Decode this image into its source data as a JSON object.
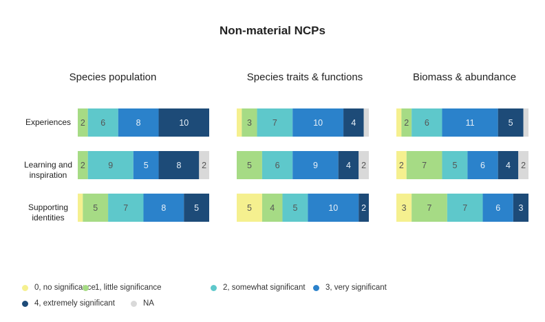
{
  "chart_data": {
    "type": "bar",
    "title": "Non-material NCPs",
    "rows": [
      "Experiences",
      "Learning and inspiration",
      "Supporting identities"
    ],
    "levels": [
      {
        "name": "0, no significance",
        "color": "#f5f08f",
        "text_color": "#555555"
      },
      {
        "name": "1, little significance",
        "color": "#a6db85",
        "text_color": "#555555"
      },
      {
        "name": "2, somewhat significant",
        "color": "#5ec8cb",
        "text_color": "#555555"
      },
      {
        "name": "3, very significant",
        "color": "#2b82cb",
        "text_color": "#e8f0f8"
      },
      {
        "name": "4, extremely significant",
        "color": "#1d4b78",
        "text_color": "#e8f0f8"
      },
      {
        "name": "NA",
        "color": "#d9d9d9",
        "text_color": "#555555"
      }
    ],
    "panels": [
      {
        "title": "Species population",
        "rows": [
          {
            "row": "Experiences",
            "values": [
              0,
              2,
              6,
              8,
              10,
              0
            ]
          },
          {
            "row": "Learning and inspiration",
            "values": [
              0,
              2,
              9,
              5,
              8,
              2
            ]
          },
          {
            "row": "Supporting identities",
            "values": [
              1,
              5,
              7,
              8,
              5,
              0
            ]
          }
        ]
      },
      {
        "title": "Species traits & functions",
        "rows": [
          {
            "row": "Experiences",
            "values": [
              1,
              3,
              7,
              10,
              4,
              1
            ]
          },
          {
            "row": "Learning and inspiration",
            "values": [
              0,
              5,
              6,
              9,
              4,
              2
            ]
          },
          {
            "row": "Supporting identities",
            "values": [
              5,
              4,
              5,
              10,
              2,
              0
            ]
          }
        ]
      },
      {
        "title": "Biomass & abundance",
        "rows": [
          {
            "row": "Experiences",
            "values": [
              1,
              2,
              6,
              11,
              5,
              1
            ]
          },
          {
            "row": "Learning and inspiration",
            "values": [
              2,
              7,
              5,
              6,
              4,
              2
            ]
          },
          {
            "row": "Supporting identities",
            "values": [
              3,
              7,
              7,
              6,
              3,
              0
            ]
          }
        ]
      }
    ],
    "row_display_labels": [
      [
        "Experiences"
      ],
      [
        "Learning and",
        "inspiration"
      ],
      [
        "Supporting",
        "identities"
      ]
    ],
    "hidden_labels": [
      "0",
      "1",
      "4"
    ],
    "legend_position": "bottom-left"
  }
}
